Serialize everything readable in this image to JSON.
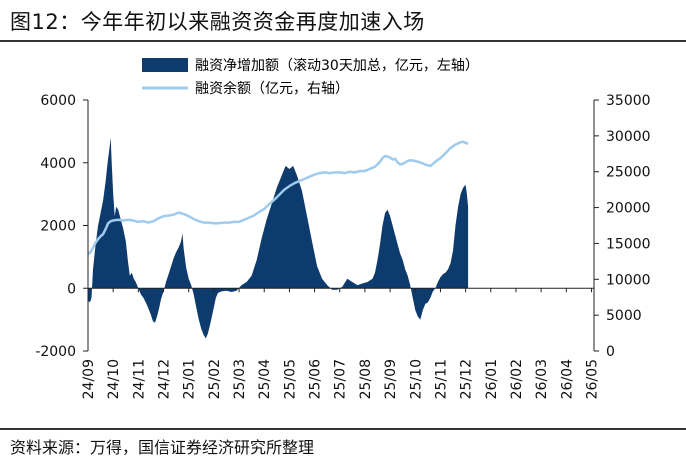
{
  "figure": {
    "title": "图12：今年年初以来融资资金再度加速入场",
    "source": "资料来源：万得，国信证券经济研究所整理"
  },
  "colors": {
    "area": "#0d3b6e",
    "line": "#9ecbee",
    "axis": "#222222"
  },
  "chart_data": {
    "type": "area",
    "legend_position": "top",
    "grid": false,
    "x_tick_labels": [
      "24/09",
      "24/10",
      "24/11",
      "24/12",
      "25/01",
      "25/02",
      "25/03",
      "25/04",
      "25/05",
      "25/06",
      "25/07",
      "25/08",
      "25/09",
      "25/10",
      "25/11",
      "25/12",
      "26/01",
      "26/02",
      "26/03",
      "26/04",
      "26/05"
    ],
    "y_left": {
      "min": -2000,
      "max": 6000,
      "ticks": [
        "-2000",
        "0",
        "2000",
        "4000",
        "6000"
      ]
    },
    "y_right": {
      "min": 0,
      "max": 35000,
      "ticks": [
        "0",
        "5000",
        "10000",
        "15000",
        "20000",
        "25000",
        "30000",
        "35000"
      ]
    },
    "series": [
      {
        "name": "融资净增加额（滚动30天加总，亿元，左轴）",
        "type": "area",
        "axis": "left",
        "points": [
          [
            0.0,
            -400
          ],
          [
            0.08,
            -450
          ],
          [
            0.14,
            -300
          ],
          [
            0.2,
            600
          ],
          [
            0.3,
            1400
          ],
          [
            0.4,
            2000
          ],
          [
            0.5,
            2400
          ],
          [
            0.6,
            2800
          ],
          [
            0.7,
            3400
          ],
          [
            0.78,
            4000
          ],
          [
            0.86,
            4500
          ],
          [
            0.9,
            4800
          ],
          [
            0.94,
            4000
          ],
          [
            1.0,
            3000
          ],
          [
            1.06,
            2300
          ],
          [
            1.12,
            2600
          ],
          [
            1.2,
            2500
          ],
          [
            1.3,
            2200
          ],
          [
            1.4,
            1900
          ],
          [
            1.5,
            1500
          ],
          [
            1.58,
            900
          ],
          [
            1.66,
            400
          ],
          [
            1.74,
            500
          ],
          [
            1.82,
            300
          ],
          [
            1.9,
            200
          ],
          [
            2.0,
            0
          ],
          [
            2.1,
            -200
          ],
          [
            2.2,
            -300
          ],
          [
            2.35,
            -550
          ],
          [
            2.5,
            -850
          ],
          [
            2.58,
            -1050
          ],
          [
            2.66,
            -1100
          ],
          [
            2.74,
            -900
          ],
          [
            2.82,
            -650
          ],
          [
            2.9,
            -350
          ],
          [
            3.0,
            -100
          ],
          [
            3.1,
            200
          ],
          [
            3.2,
            450
          ],
          [
            3.3,
            700
          ],
          [
            3.4,
            950
          ],
          [
            3.5,
            1150
          ],
          [
            3.6,
            1300
          ],
          [
            3.7,
            1500
          ],
          [
            3.75,
            1750
          ],
          [
            3.8,
            1250
          ],
          [
            3.9,
            650
          ],
          [
            4.0,
            300
          ],
          [
            4.1,
            100
          ],
          [
            4.2,
            -200
          ],
          [
            4.3,
            -600
          ],
          [
            4.4,
            -1000
          ],
          [
            4.5,
            -1300
          ],
          [
            4.6,
            -1500
          ],
          [
            4.68,
            -1600
          ],
          [
            4.76,
            -1450
          ],
          [
            4.84,
            -1200
          ],
          [
            4.92,
            -900
          ],
          [
            5.0,
            -600
          ],
          [
            5.08,
            -300
          ],
          [
            5.16,
            -150
          ],
          [
            5.3,
            -100
          ],
          [
            5.5,
            -80
          ],
          [
            5.7,
            -120
          ],
          [
            5.9,
            -80
          ],
          [
            6.1,
            100
          ],
          [
            6.3,
            200
          ],
          [
            6.5,
            400
          ],
          [
            6.7,
            900
          ],
          [
            6.9,
            1600
          ],
          [
            7.1,
            2200
          ],
          [
            7.3,
            2700
          ],
          [
            7.5,
            3200
          ],
          [
            7.7,
            3600
          ],
          [
            7.85,
            3900
          ],
          [
            8.0,
            3800
          ],
          [
            8.15,
            3900
          ],
          [
            8.3,
            3600
          ],
          [
            8.5,
            3100
          ],
          [
            8.7,
            2300
          ],
          [
            8.9,
            1500
          ],
          [
            9.1,
            700
          ],
          [
            9.3,
            300
          ],
          [
            9.5,
            100
          ],
          [
            9.7,
            -50
          ],
          [
            9.9,
            -50
          ],
          [
            10.1,
            50
          ],
          [
            10.3,
            300
          ],
          [
            10.5,
            200
          ],
          [
            10.7,
            100
          ],
          [
            10.9,
            150
          ],
          [
            11.1,
            200
          ],
          [
            11.3,
            300
          ],
          [
            11.4,
            500
          ],
          [
            11.5,
            900
          ],
          [
            11.6,
            1400
          ],
          [
            11.7,
            2000
          ],
          [
            11.8,
            2400
          ],
          [
            11.9,
            2500
          ],
          [
            12.0,
            2300
          ],
          [
            12.1,
            2000
          ],
          [
            12.2,
            1700
          ],
          [
            12.3,
            1400
          ],
          [
            12.4,
            1100
          ],
          [
            12.5,
            900
          ],
          [
            12.6,
            600
          ],
          [
            12.7,
            400
          ],
          [
            12.8,
            100
          ],
          [
            12.9,
            -300
          ],
          [
            13.0,
            -700
          ],
          [
            13.1,
            -900
          ],
          [
            13.2,
            -1000
          ],
          [
            13.3,
            -700
          ],
          [
            13.4,
            -500
          ],
          [
            13.5,
            -450
          ],
          [
            13.6,
            -300
          ],
          [
            13.7,
            -100
          ],
          [
            13.8,
            0
          ],
          [
            13.9,
            200
          ],
          [
            14.0,
            350
          ],
          [
            14.1,
            450
          ],
          [
            14.2,
            500
          ],
          [
            14.3,
            600
          ],
          [
            14.4,
            800
          ],
          [
            14.5,
            1200
          ],
          [
            14.6,
            2000
          ],
          [
            14.7,
            2600
          ],
          [
            14.8,
            3000
          ],
          [
            14.9,
            3200
          ],
          [
            15.0,
            3300
          ],
          [
            15.05,
            3000
          ],
          [
            15.1,
            2600
          ]
        ]
      },
      {
        "name": "融资余额（亿元，右轴）",
        "type": "line",
        "axis": "right",
        "points": [
          [
            0.0,
            13500
          ],
          [
            0.1,
            13800
          ],
          [
            0.2,
            14400
          ],
          [
            0.3,
            15100
          ],
          [
            0.4,
            15600
          ],
          [
            0.5,
            16000
          ],
          [
            0.6,
            16300
          ],
          [
            0.7,
            17000
          ],
          [
            0.8,
            17800
          ],
          [
            0.9,
            18100
          ],
          [
            1.0,
            18200
          ],
          [
            1.2,
            18300
          ],
          [
            1.4,
            18200
          ],
          [
            1.6,
            18300
          ],
          [
            1.8,
            18200
          ],
          [
            2.0,
            18000
          ],
          [
            2.2,
            18100
          ],
          [
            2.4,
            17900
          ],
          [
            2.6,
            18100
          ],
          [
            2.8,
            18500
          ],
          [
            3.0,
            18800
          ],
          [
            3.2,
            18900
          ],
          [
            3.4,
            19000
          ],
          [
            3.6,
            19300
          ],
          [
            3.8,
            19100
          ],
          [
            4.0,
            18800
          ],
          [
            4.2,
            18400
          ],
          [
            4.4,
            18100
          ],
          [
            4.6,
            17900
          ],
          [
            4.8,
            17900
          ],
          [
            5.0,
            17800
          ],
          [
            5.2,
            17800
          ],
          [
            5.4,
            17900
          ],
          [
            5.6,
            17900
          ],
          [
            5.8,
            18000
          ],
          [
            6.0,
            18000
          ],
          [
            6.2,
            18300
          ],
          [
            6.4,
            18600
          ],
          [
            6.6,
            18900
          ],
          [
            6.8,
            19400
          ],
          [
            7.0,
            19800
          ],
          [
            7.2,
            20500
          ],
          [
            7.4,
            21100
          ],
          [
            7.6,
            21800
          ],
          [
            7.8,
            22500
          ],
          [
            8.0,
            23000
          ],
          [
            8.2,
            23400
          ],
          [
            8.4,
            23700
          ],
          [
            8.6,
            24000
          ],
          [
            8.8,
            24300
          ],
          [
            9.0,
            24600
          ],
          [
            9.2,
            24800
          ],
          [
            9.4,
            24900
          ],
          [
            9.6,
            24800
          ],
          [
            9.8,
            24900
          ],
          [
            10.0,
            24900
          ],
          [
            10.2,
            24800
          ],
          [
            10.4,
            25000
          ],
          [
            10.6,
            24900
          ],
          [
            10.8,
            25100
          ],
          [
            11.0,
            25100
          ],
          [
            11.2,
            25400
          ],
          [
            11.4,
            25700
          ],
          [
            11.6,
            26400
          ],
          [
            11.7,
            26900
          ],
          [
            11.8,
            27200
          ],
          [
            12.0,
            27000
          ],
          [
            12.1,
            26700
          ],
          [
            12.2,
            26800
          ],
          [
            12.3,
            26300
          ],
          [
            12.4,
            26000
          ],
          [
            12.5,
            26100
          ],
          [
            12.6,
            26300
          ],
          [
            12.7,
            26500
          ],
          [
            12.8,
            26600
          ],
          [
            13.0,
            26500
          ],
          [
            13.2,
            26300
          ],
          [
            13.4,
            26000
          ],
          [
            13.6,
            25800
          ],
          [
            13.7,
            26100
          ],
          [
            13.8,
            26400
          ],
          [
            14.0,
            26900
          ],
          [
            14.2,
            27600
          ],
          [
            14.4,
            28300
          ],
          [
            14.6,
            28800
          ],
          [
            14.8,
            29100
          ],
          [
            14.9,
            29200
          ],
          [
            15.0,
            29000
          ],
          [
            15.1,
            28900
          ]
        ]
      }
    ]
  }
}
